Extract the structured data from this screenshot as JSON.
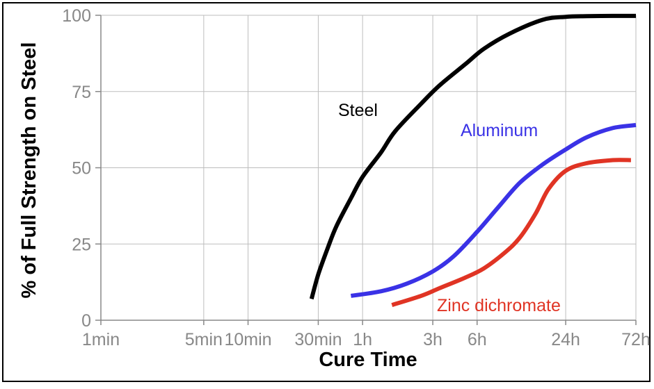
{
  "chart_data": {
    "type": "line",
    "title": "",
    "xlabel": "Cure Time",
    "ylabel": "% of Full Strength on Steel",
    "x_scale": "log",
    "x_unit": "minutes",
    "x_ticks": [
      {
        "label": "1min",
        "value": 1
      },
      {
        "label": "5min",
        "value": 5
      },
      {
        "label": "10min",
        "value": 10
      },
      {
        "label": "30min",
        "value": 30
      },
      {
        "label": "1h",
        "value": 60
      },
      {
        "label": "3h",
        "value": 180
      },
      {
        "label": "6h",
        "value": 360
      },
      {
        "label": "24h",
        "value": 1440
      },
      {
        "label": "72h",
        "value": 4320
      }
    ],
    "y_ticks": [
      "0",
      "25",
      "50",
      "75",
      "100"
    ],
    "ylim": [
      0,
      100
    ],
    "grid": true,
    "series": [
      {
        "name": "Steel",
        "color": "#000000",
        "x": [
          27,
          30,
          35,
          40,
          50,
          60,
          80,
          100,
          150,
          200,
          300,
          400,
          600,
          1000,
          1440,
          2000,
          3000,
          4320
        ],
        "y": [
          7,
          15,
          24,
          31,
          40,
          47,
          55,
          62,
          71,
          77,
          84,
          89,
          94,
          98.5,
          99.5,
          99.7,
          99.8,
          99.8
        ]
      },
      {
        "name": "Aluminum",
        "color": "#3a32e6",
        "x": [
          50,
          80,
          120,
          180,
          250,
          360,
          500,
          700,
          1000,
          1440,
          2000,
          3000,
          4320
        ],
        "y": [
          8,
          9.5,
          12,
          16,
          21,
          29,
          37,
          45,
          51,
          56,
          60,
          63,
          64
        ]
      },
      {
        "name": "Zinc dichromate",
        "color": "#e03424",
        "x": [
          95,
          150,
          200,
          300,
          400,
          550,
          700,
          900,
          1100,
          1440,
          2000,
          3000,
          4000
        ],
        "y": [
          5,
          8,
          10.5,
          14,
          17,
          22,
          27,
          35,
          43,
          49,
          51.5,
          52.5,
          52.5
        ]
      }
    ]
  }
}
